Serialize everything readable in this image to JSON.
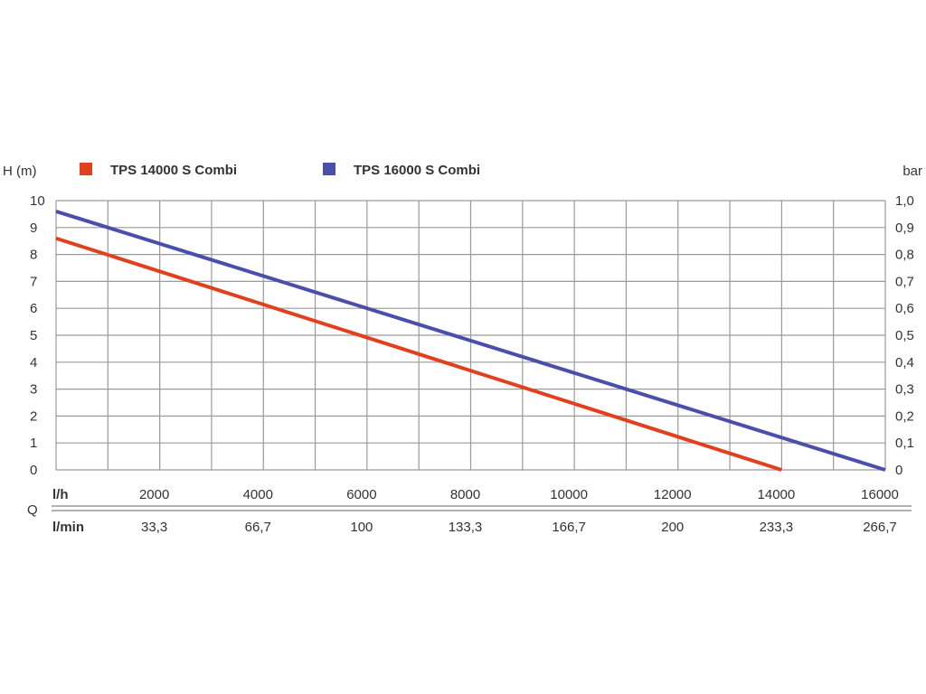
{
  "chart_data": {
    "type": "line",
    "y_left_label": "H (m)",
    "y_right_label": "bar",
    "y_left_ticks": [
      "0",
      "1",
      "2",
      "3",
      "4",
      "5",
      "6",
      "7",
      "8",
      "9",
      "10"
    ],
    "y_right_ticks": [
      "0",
      "0,1",
      "0,2",
      "0,3",
      "0,4",
      "0,5",
      "0,6",
      "0,7",
      "0,8",
      "0,9",
      "1,0"
    ],
    "ylim": [
      0,
      10
    ],
    "xlim": [
      0,
      16000
    ],
    "x_row_label": "l/h",
    "x_ticks": [
      "2000",
      "4000",
      "6000",
      "8000",
      "10000",
      "12000",
      "14000",
      "16000"
    ],
    "x2_row_label": "l/min",
    "x2_ticks": [
      "33,3",
      "66,7",
      "100",
      "133,3",
      "166,7",
      "200",
      "233,3",
      "266,7"
    ],
    "q_label": "Q",
    "grid": true,
    "legend_position": "top-left",
    "series": [
      {
        "name": "TPS 14000 S Combi",
        "color": "#e2401c",
        "x": [
          0,
          14000
        ],
        "y": [
          8.6,
          0
        ]
      },
      {
        "name": "TPS 16000 S Combi",
        "color": "#4a4fae",
        "x": [
          0,
          16000
        ],
        "y": [
          9.6,
          0
        ]
      }
    ]
  }
}
